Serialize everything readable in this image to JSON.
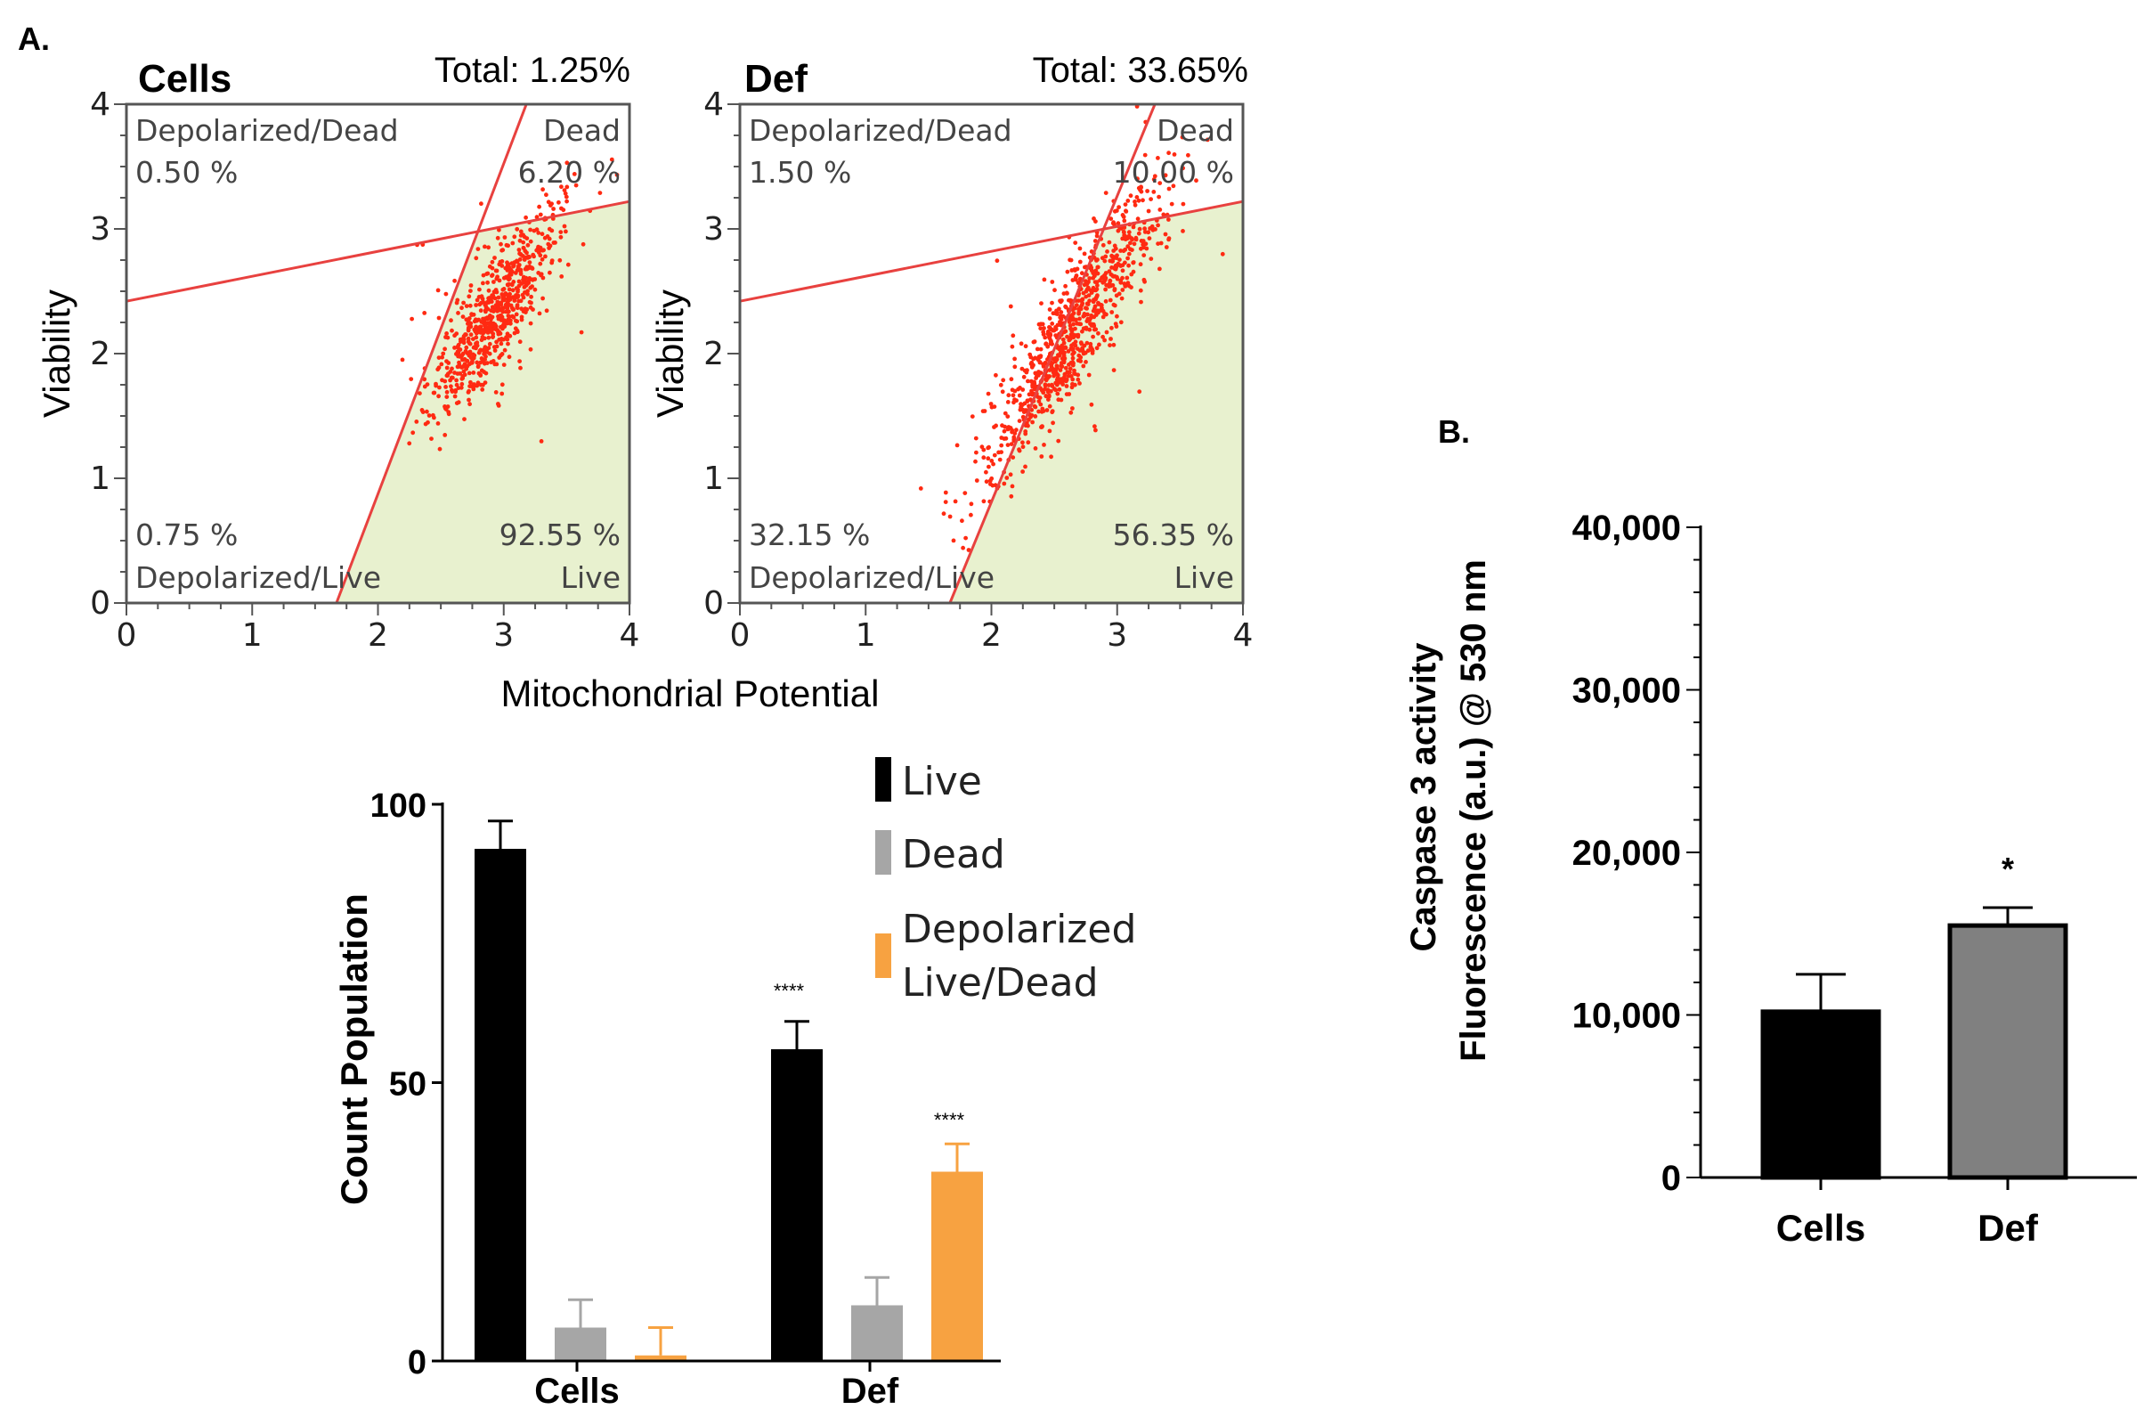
{
  "panel_a_label": "A.",
  "panel_b_label": "B.",
  "colors": {
    "live": "#000000",
    "dead": "#a6a6a6",
    "depolarized": "#f7a241",
    "gate": "#e8413f",
    "live_fill": "#e8f1cf",
    "scatter": "#ff2a12",
    "bar_b_def": "#808080"
  },
  "scatter_shared": {
    "ylabel": "Viability",
    "xlabel": "Mitochondrial Potential"
  },
  "chart_data": [
    {
      "type": "scatter",
      "title": "Cells",
      "total": "Total: 1.25%",
      "xlim": [
        0,
        4
      ],
      "ylim": [
        0,
        4
      ],
      "x_ticks": [
        "0",
        "1",
        "2",
        "3",
        "4"
      ],
      "y_ticks": [
        "0",
        "1",
        "2",
        "3",
        "4"
      ],
      "quadrants": {
        "depol_dead_name": "Depolarized/Dead",
        "depol_dead_pct": "0.50 %",
        "dead_name": "Dead",
        "dead_pct": "6.20 %",
        "depol_live_pct": "0.75 %",
        "depol_live_name": "Depolarized/Live",
        "live_pct": "92.55 %",
        "live_name": "Live"
      },
      "gate_horizontal": {
        "x": [
          0,
          4
        ],
        "y": [
          2.42,
          3.22
        ]
      },
      "gate_diagonal": {
        "x": [
          1.67,
          3.18
        ],
        "y": [
          0,
          4
        ]
      },
      "cluster": {
        "center_x": 2.95,
        "center_y": 2.35,
        "spread": 0.55,
        "n": 700
      }
    },
    {
      "type": "scatter",
      "title": "Def",
      "total": "Total: 33.65%",
      "xlim": [
        0,
        4
      ],
      "ylim": [
        0,
        4
      ],
      "x_ticks": [
        "0",
        "1",
        "2",
        "3",
        "4"
      ],
      "y_ticks": [
        "0",
        "1",
        "2",
        "3",
        "4"
      ],
      "quadrants": {
        "depol_dead_name": "Depolarized/Dead",
        "depol_dead_pct": "1.50 %",
        "dead_name": "Dead",
        "dead_pct": "10.00 %",
        "depol_live_pct": "32.15 %",
        "depol_live_name": "Depolarized/Live",
        "live_pct": "56.35 %",
        "live_name": "Live"
      },
      "gate_horizontal": {
        "x": [
          0,
          4
        ],
        "y": [
          2.42,
          3.22
        ]
      },
      "gate_diagonal": {
        "x": [
          1.67,
          3.3
        ],
        "y": [
          0,
          4
        ]
      },
      "cluster": {
        "center_x": 2.65,
        "center_y": 2.2,
        "spread": 0.8,
        "n": 900
      }
    },
    {
      "type": "bar",
      "ylabel": "Count Population",
      "categories": [
        "Cells",
        "Def"
      ],
      "ylim": [
        0,
        100
      ],
      "y_ticks": [
        0,
        50,
        100
      ],
      "series": [
        {
          "name": "Live",
          "values": [
            92,
            56
          ],
          "errors": [
            5,
            5
          ]
        },
        {
          "name": "Dead",
          "values": [
            6,
            10
          ],
          "errors": [
            5,
            5
          ]
        },
        {
          "name": "Depolarized Live/Dead",
          "values": [
            1,
            34
          ],
          "errors": [
            5,
            5
          ]
        }
      ],
      "legend": [
        "Live",
        "Dead",
        "Depolarized",
        "Live/Dead"
      ],
      "significance": {
        "Def-Live": "****",
        "Def-Depolarized Live/Dead": "****"
      }
    },
    {
      "type": "bar",
      "ylabel_line1": "Caspase 3 activity",
      "ylabel_line2": "Fluorescence (a.u.) @ 530 nm",
      "categories": [
        "Cells",
        "Def"
      ],
      "values": [
        10200,
        15500
      ],
      "errors": [
        2300,
        1100
      ],
      "ylim": [
        0,
        40000
      ],
      "y_ticks": [
        0,
        10000,
        20000,
        30000,
        40000
      ],
      "y_tick_labels": [
        "0",
        "10,000",
        "20,000",
        "30,000",
        "40,000"
      ],
      "significance": [
        "",
        "*"
      ]
    }
  ]
}
